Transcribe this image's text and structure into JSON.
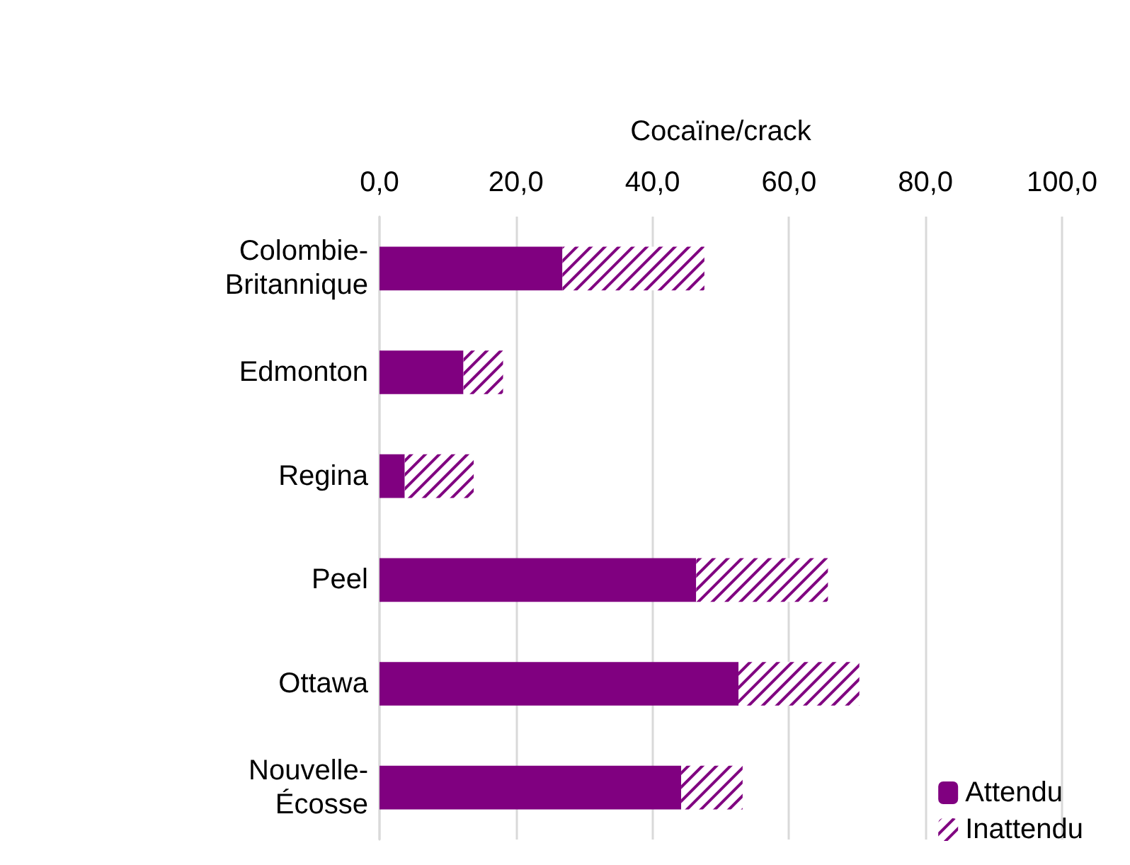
{
  "chart_data": {
    "type": "bar",
    "orientation": "horizontal",
    "stacked": true,
    "xlabel": "Cocaïne/crack",
    "categories": [
      "Colombie-Britannique",
      "Edmonton",
      "Regina",
      "Peel",
      "Ottawa",
      "Nouvelle-Écosse"
    ],
    "series": [
      {
        "name": "Attendu",
        "color": "#800080",
        "values": [
          26.8,
          12.3,
          3.7,
          46.4,
          52.6,
          44.2
        ]
      },
      {
        "name": "Inattendu",
        "color": "#800080",
        "values": [
          20.8,
          5.8,
          10.1,
          19.3,
          17.7,
          9.0
        ]
      }
    ],
    "xlim": [
      0,
      100
    ],
    "xticks": [
      {
        "value": 0,
        "label": "0,0"
      },
      {
        "value": 20,
        "label": "20,0"
      },
      {
        "value": 40,
        "label": "40,0"
      },
      {
        "value": 60,
        "label": "60,0"
      },
      {
        "value": 80,
        "label": "80,0"
      },
      {
        "value": 100,
        "label": "100,0"
      }
    ],
    "grid": "x",
    "legend": "bottom right"
  }
}
